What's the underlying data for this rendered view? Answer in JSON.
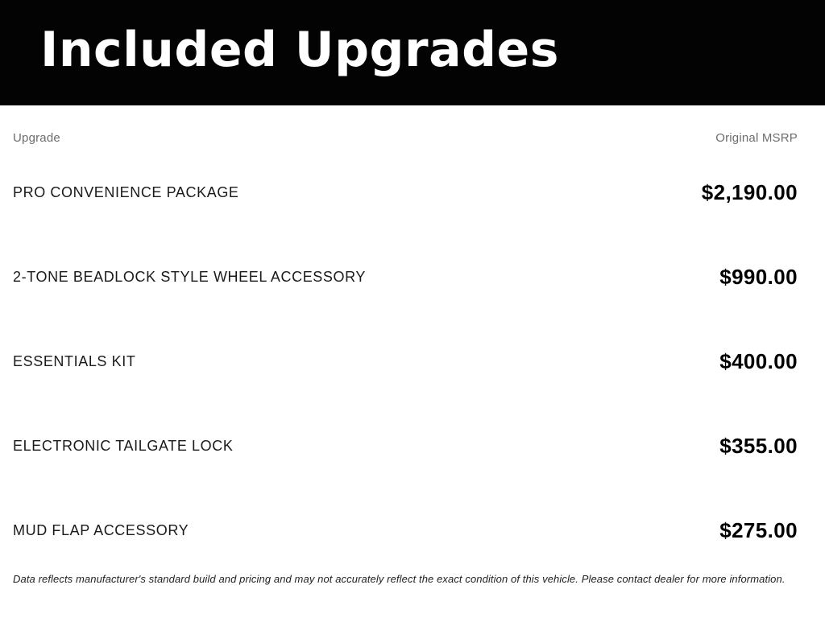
{
  "header": {
    "title": "Included Upgrades"
  },
  "table": {
    "columns": {
      "upgrade_label": "Upgrade",
      "msrp_label": "Original MSRP"
    },
    "rows": [
      {
        "name": "PRO CONVENIENCE PACKAGE",
        "price": "$2,190.00"
      },
      {
        "name": "2-TONE BEADLOCK STYLE WHEEL ACCESSORY",
        "price": "$990.00"
      },
      {
        "name": "ESSENTIALS KIT",
        "price": "$400.00"
      },
      {
        "name": "ELECTRONIC TAILGATE LOCK",
        "price": "$355.00"
      },
      {
        "name": "MUD FLAP ACCESSORY",
        "price": "$275.00"
      }
    ]
  },
  "footer": {
    "disclaimer": "Data reflects manufacturer's standard build and pricing and may not accurately reflect the exact condition of this vehicle. Please contact dealer for more information."
  },
  "colors": {
    "banner_bg": "#030303",
    "title_text": "#ffffff",
    "column_header_text": "#6d6d6d",
    "row_name_text": "#1a1a1a",
    "price_text": "#000000",
    "disclaimer_text": "#1f1f1f"
  }
}
